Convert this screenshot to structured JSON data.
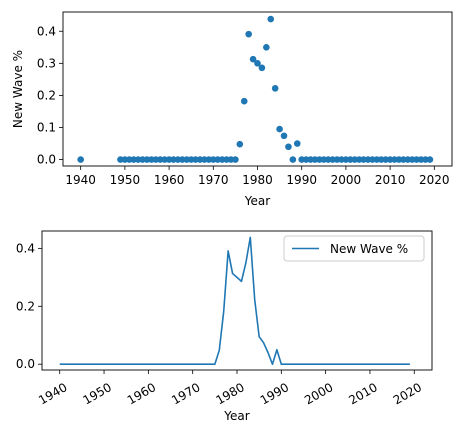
{
  "chart_data": [
    {
      "type": "scatter",
      "xlabel": "Year",
      "ylabel": "New Wave %",
      "xlim": [
        1936,
        2024
      ],
      "ylim": [
        -0.02,
        0.46
      ],
      "x_ticks": [
        1940,
        1950,
        1960,
        1970,
        1980,
        1990,
        2000,
        2010,
        2020
      ],
      "y_ticks": [
        0.0,
        0.1,
        0.2,
        0.3,
        0.4
      ],
      "y_tick_labels": [
        "0.0",
        "0.1",
        "0.2",
        "0.3",
        "0.4"
      ],
      "color": "#1f77b4",
      "grid": false,
      "points": [
        {
          "x": 1940,
          "y": 0.0
        },
        {
          "x": 1949,
          "y": 0.0
        },
        {
          "x": 1950,
          "y": 0.0
        },
        {
          "x": 1951,
          "y": 0.0
        },
        {
          "x": 1952,
          "y": 0.0
        },
        {
          "x": 1953,
          "y": 0.0
        },
        {
          "x": 1954,
          "y": 0.0
        },
        {
          "x": 1955,
          "y": 0.0
        },
        {
          "x": 1956,
          "y": 0.0
        },
        {
          "x": 1957,
          "y": 0.0
        },
        {
          "x": 1958,
          "y": 0.0
        },
        {
          "x": 1959,
          "y": 0.0
        },
        {
          "x": 1960,
          "y": 0.0
        },
        {
          "x": 1961,
          "y": 0.0
        },
        {
          "x": 1962,
          "y": 0.0
        },
        {
          "x": 1963,
          "y": 0.0
        },
        {
          "x": 1964,
          "y": 0.0
        },
        {
          "x": 1965,
          "y": 0.0
        },
        {
          "x": 1966,
          "y": 0.0
        },
        {
          "x": 1967,
          "y": 0.0
        },
        {
          "x": 1968,
          "y": 0.0
        },
        {
          "x": 1969,
          "y": 0.0
        },
        {
          "x": 1970,
          "y": 0.0
        },
        {
          "x": 1971,
          "y": 0.0
        },
        {
          "x": 1972,
          "y": 0.0
        },
        {
          "x": 1973,
          "y": 0.0
        },
        {
          "x": 1974,
          "y": 0.0
        },
        {
          "x": 1975,
          "y": 0.0
        },
        {
          "x": 1976,
          "y": 0.048
        },
        {
          "x": 1977,
          "y": 0.182
        },
        {
          "x": 1978,
          "y": 0.391
        },
        {
          "x": 1979,
          "y": 0.313
        },
        {
          "x": 1980,
          "y": 0.3
        },
        {
          "x": 1981,
          "y": 0.286
        },
        {
          "x": 1982,
          "y": 0.35
        },
        {
          "x": 1983,
          "y": 0.438
        },
        {
          "x": 1984,
          "y": 0.222
        },
        {
          "x": 1985,
          "y": 0.095
        },
        {
          "x": 1986,
          "y": 0.074
        },
        {
          "x": 1987,
          "y": 0.04
        },
        {
          "x": 1988,
          "y": 0.0
        },
        {
          "x": 1989,
          "y": 0.05
        },
        {
          "x": 1990,
          "y": 0.0
        },
        {
          "x": 1991,
          "y": 0.0
        },
        {
          "x": 1992,
          "y": 0.0
        },
        {
          "x": 1993,
          "y": 0.0
        },
        {
          "x": 1994,
          "y": 0.0
        },
        {
          "x": 1995,
          "y": 0.0
        },
        {
          "x": 1996,
          "y": 0.0
        },
        {
          "x": 1997,
          "y": 0.0
        },
        {
          "x": 1998,
          "y": 0.0
        },
        {
          "x": 1999,
          "y": 0.0
        },
        {
          "x": 2000,
          "y": 0.0
        },
        {
          "x": 2001,
          "y": 0.0
        },
        {
          "x": 2002,
          "y": 0.0
        },
        {
          "x": 2003,
          "y": 0.0
        },
        {
          "x": 2004,
          "y": 0.0
        },
        {
          "x": 2005,
          "y": 0.0
        },
        {
          "x": 2006,
          "y": 0.0
        },
        {
          "x": 2007,
          "y": 0.0
        },
        {
          "x": 2008,
          "y": 0.0
        },
        {
          "x": 2009,
          "y": 0.0
        },
        {
          "x": 2010,
          "y": 0.0
        },
        {
          "x": 2011,
          "y": 0.0
        },
        {
          "x": 2012,
          "y": 0.0
        },
        {
          "x": 2013,
          "y": 0.0
        },
        {
          "x": 2014,
          "y": 0.0
        },
        {
          "x": 2015,
          "y": 0.0
        },
        {
          "x": 2016,
          "y": 0.0
        },
        {
          "x": 2017,
          "y": 0.0
        },
        {
          "x": 2018,
          "y": 0.0
        },
        {
          "x": 2019,
          "y": 0.0
        }
      ]
    },
    {
      "type": "line",
      "xlabel": "Year",
      "ylabel": "",
      "xlim": [
        1936,
        2024
      ],
      "ylim": [
        -0.02,
        0.46
      ],
      "x_ticks": [
        1940,
        1950,
        1960,
        1970,
        1980,
        1990,
        2000,
        2010,
        2020
      ],
      "y_ticks": [
        0.0,
        0.2,
        0.4
      ],
      "y_tick_labels": [
        "0.0",
        "0.2",
        "0.4"
      ],
      "x_tick_rotation": 30,
      "color": "#1f77b4",
      "grid": false,
      "legend": "upper right",
      "series": [
        {
          "name": "New Wave %",
          "points": [
            {
              "x": 1940,
              "y": 0.0
            },
            {
              "x": 1975,
              "y": 0.0
            },
            {
              "x": 1976,
              "y": 0.048
            },
            {
              "x": 1977,
              "y": 0.182
            },
            {
              "x": 1978,
              "y": 0.391
            },
            {
              "x": 1979,
              "y": 0.313
            },
            {
              "x": 1980,
              "y": 0.3
            },
            {
              "x": 1981,
              "y": 0.286
            },
            {
              "x": 1982,
              "y": 0.35
            },
            {
              "x": 1983,
              "y": 0.438
            },
            {
              "x": 1984,
              "y": 0.222
            },
            {
              "x": 1985,
              "y": 0.095
            },
            {
              "x": 1986,
              "y": 0.074
            },
            {
              "x": 1987,
              "y": 0.04
            },
            {
              "x": 1988,
              "y": 0.0
            },
            {
              "x": 1989,
              "y": 0.05
            },
            {
              "x": 1990,
              "y": 0.0
            },
            {
              "x": 2019,
              "y": 0.0
            }
          ]
        }
      ]
    }
  ]
}
